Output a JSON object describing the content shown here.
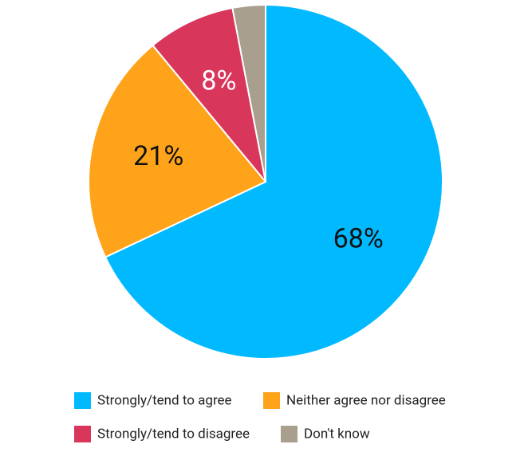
{
  "chart_data": {
    "type": "pie",
    "categories": [
      "Strongly/tend to agree",
      "Neither agree nor disagree",
      "Strongly/tend to disagree",
      "Don't know"
    ],
    "values": [
      68,
      21,
      8,
      3
    ],
    "value_labels": [
      "68%",
      "21%",
      "8%",
      null
    ],
    "colors": [
      "#00b9ff",
      "#ffa31a",
      "#d9365c",
      "#a89f8f"
    ],
    "label_colors": [
      "#111111",
      "#111111",
      "#ffffff",
      "#111111"
    ]
  }
}
